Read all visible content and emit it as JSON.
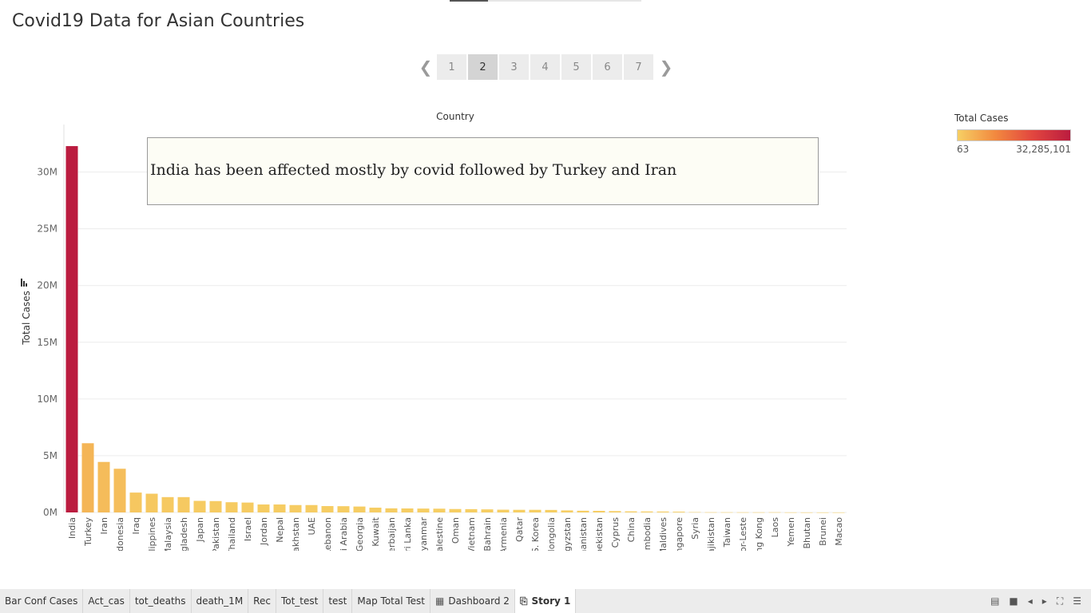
{
  "story": {
    "title": "Covid19 Data for Asian Countries"
  },
  "pager": {
    "pages": [
      "1",
      "2",
      "3",
      "4",
      "5",
      "6",
      "7"
    ],
    "active": "2"
  },
  "annotation": {
    "text": "India has been affected mostly by covid followed by Turkey and Iran"
  },
  "legend": {
    "title": "Total Cases",
    "min": "63",
    "max": "32,285,101"
  },
  "icons": {
    "prev": "chevron-left-icon",
    "next": "chevron-right-icon",
    "sort": "sort-descending-icon",
    "dashboard": "dashboard-grid-icon",
    "story": "story-book-icon"
  },
  "tabs": [
    {
      "label": "Bar Conf Cases"
    },
    {
      "label": "Act_cas"
    },
    {
      "label": "tot_deaths"
    },
    {
      "label": "death_1M"
    },
    {
      "label": "Rec"
    },
    {
      "label": "Tot_test"
    },
    {
      "label": "test"
    },
    {
      "label": "Map  Total Test"
    },
    {
      "label": "Dashboard 2",
      "icon": "▦"
    },
    {
      "label": "Story 1",
      "icon": "⎘",
      "active": true
    }
  ],
  "colors": {
    "low": "#f6cf64",
    "mid": "#f2893f",
    "high": "#bb1c3f",
    "grid": "#ececec"
  },
  "chart_data": {
    "type": "bar",
    "xlabel": "Country",
    "ylabel": "Total Cases",
    "ylim": [
      0,
      32500000
    ],
    "yticks": [
      {
        "value": 0,
        "label": "0M"
      },
      {
        "value": 5000000,
        "label": "5M"
      },
      {
        "value": 10000000,
        "label": "10M"
      },
      {
        "value": 15000000,
        "label": "15M"
      },
      {
        "value": 20000000,
        "label": "20M"
      },
      {
        "value": 25000000,
        "label": "25M"
      },
      {
        "value": 30000000,
        "label": "30M"
      }
    ],
    "grid": true,
    "categories": [
      "India",
      "Turkey",
      "Iran",
      "Indonesia",
      "Iraq",
      "Philippines",
      "Malaysia",
      "Bangladesh",
      "Japan",
      "Pakistan",
      "Thailand",
      "Israel",
      "Jordan",
      "Nepal",
      "Kazakhstan",
      "UAE",
      "Lebanon",
      "Saudi Arabia",
      "Georgia",
      "Kuwait",
      "Azerbaijan",
      "Sri Lanka",
      "Myanmar",
      "Palestine",
      "Oman",
      "Vietnam",
      "Bahrain",
      "Armenia",
      "Qatar",
      "S. Korea",
      "Mongolia",
      "Kyrgyzstan",
      "Afghanistan",
      "Uzbekistan",
      "Cyprus",
      "China",
      "Cambodia",
      "Maldives",
      "Singapore",
      "Syria",
      "Tajikistan",
      "Taiwan",
      "Timor-Leste",
      "Hong Kong",
      "Laos",
      "Yemen",
      "Bhutan",
      "Brunei",
      "Macao"
    ],
    "values": [
      32285101,
      6100000,
      4450000,
      3850000,
      1750000,
      1650000,
      1350000,
      1350000,
      1020000,
      1000000,
      900000,
      870000,
      700000,
      700000,
      650000,
      650000,
      560000,
      550000,
      520000,
      420000,
      360000,
      350000,
      340000,
      330000,
      300000,
      290000,
      270000,
      240000,
      230000,
      230000,
      220000,
      180000,
      150000,
      140000,
      120000,
      95000,
      85000,
      80000,
      67000,
      28000,
      17000,
      16000,
      13000,
      12000,
      17000,
      7000,
      2500,
      300,
      63
    ]
  }
}
